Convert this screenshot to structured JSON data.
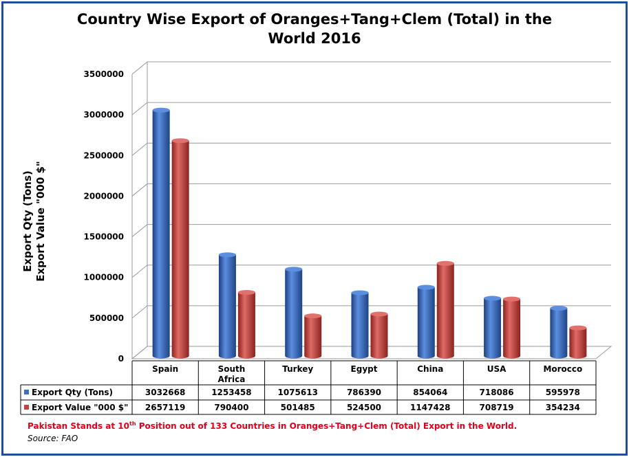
{
  "chart_data": {
    "type": "bar",
    "title": "Country Wise Export of Oranges+Tang+Clem (Total) in the World 2016",
    "title_lines": [
      "Country Wise Export of Oranges+Tang+Clem (Total) in the",
      "World 2016"
    ],
    "ylabel_lines": [
      "Export Qty (Tons)",
      "Export Value \"000 $\""
    ],
    "ylim": [
      0,
      3500000
    ],
    "yticks": [
      "0",
      "500000",
      "1000000",
      "1500000",
      "2000000",
      "2500000",
      "3000000",
      "3500000"
    ],
    "grid": true,
    "categories": [
      "Spain",
      "South Africa",
      "Turkey",
      "Egypt",
      "China",
      "USA",
      "Morocco"
    ],
    "category_lines": [
      [
        "Spain"
      ],
      [
        "South",
        "Africa"
      ],
      [
        "Turkey"
      ],
      [
        "Egypt"
      ],
      [
        "China"
      ],
      [
        "USA"
      ],
      [
        "Morocco"
      ]
    ],
    "series": [
      {
        "name": "Export Qty (Tons)",
        "color": "#3c6fc1",
        "values": [
          3032668,
          1253458,
          1075613,
          786390,
          854064,
          718086,
          595978
        ],
        "labels": [
          "3032668",
          "1253458",
          "1075613",
          "786390",
          "854064",
          "718086",
          "595978"
        ]
      },
      {
        "name": "Export Value \"000 $\"",
        "color": "#c9403c",
        "values": [
          2657119,
          790400,
          501485,
          524500,
          1147428,
          708719,
          354234
        ],
        "labels": [
          "2657119",
          "790400",
          "501485",
          "524500",
          "1147428",
          "708719",
          "354234"
        ]
      }
    ],
    "legend_placement": "data-table"
  },
  "footer": {
    "note_before": "Pakistan Stands at 10",
    "note_sup": "th",
    "note_after": "  Position out of 133 Countries in Oranges+Tang+Clem (Total) Export in the World.",
    "source": "Source: FAO"
  }
}
